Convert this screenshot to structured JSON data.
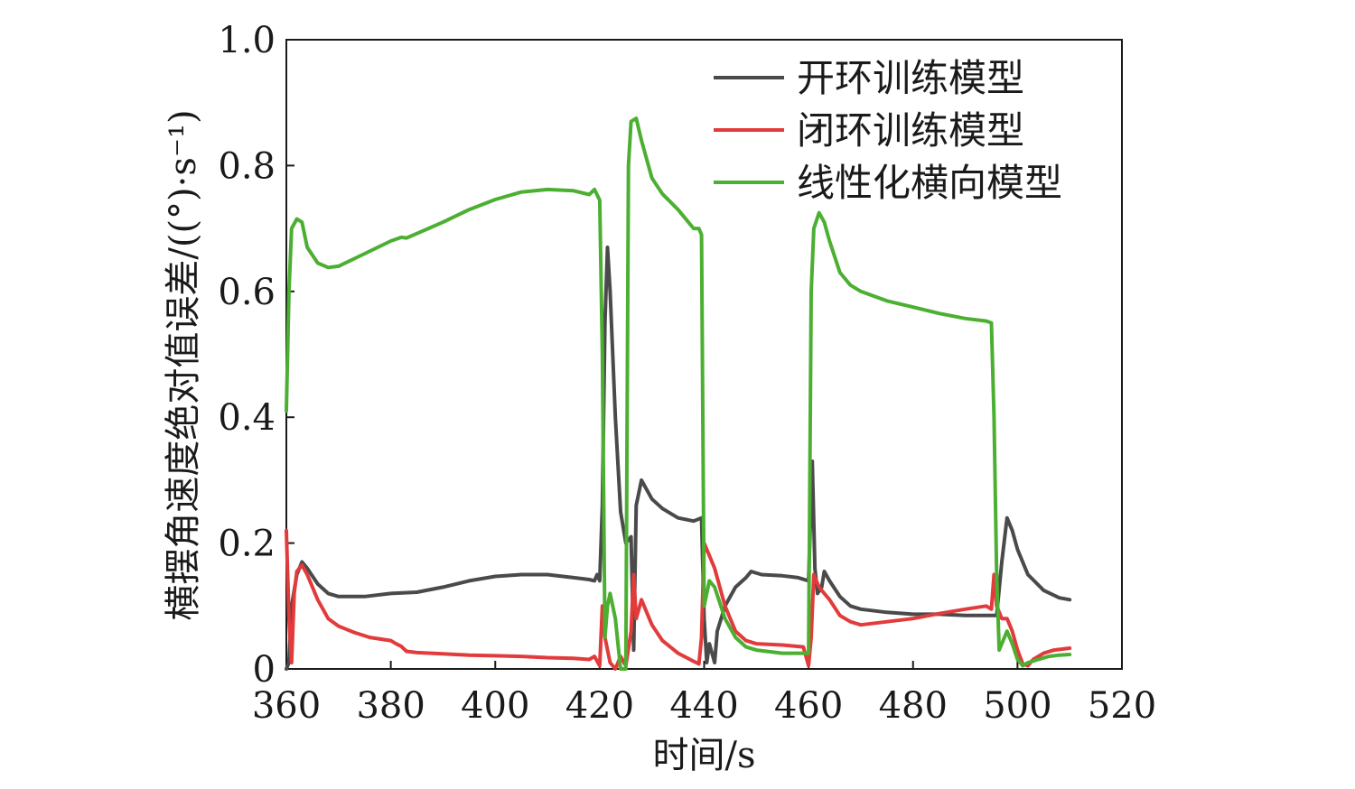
{
  "chart_data": {
    "type": "line",
    "xlabel": "时间/s",
    "ylabel": "横摆角速度绝对值误差/((°)·s⁻¹)",
    "xlim": [
      360,
      520
    ],
    "ylim": [
      0,
      1.0
    ],
    "x_ticks": [
      "360",
      "380",
      "400",
      "420",
      "440",
      "460",
      "480",
      "500",
      "520"
    ],
    "y_ticks": [
      "0",
      "0.2",
      "0.4",
      "0.6",
      "0.8",
      "1.0"
    ],
    "grid": false,
    "legend_position": "top-right",
    "series": [
      {
        "name": "开环训练模型",
        "color": "#4a4a4a",
        "points": [
          [
            360,
            0
          ],
          [
            360.5,
            0.01
          ],
          [
            361,
            0.1
          ],
          [
            362,
            0.15
          ],
          [
            363,
            0.17
          ],
          [
            364,
            0.16
          ],
          [
            366,
            0.135
          ],
          [
            368,
            0.12
          ],
          [
            370,
            0.115
          ],
          [
            375,
            0.115
          ],
          [
            380,
            0.12
          ],
          [
            385,
            0.122
          ],
          [
            390,
            0.13
          ],
          [
            395,
            0.14
          ],
          [
            400,
            0.147
          ],
          [
            405,
            0.15
          ],
          [
            410,
            0.15
          ],
          [
            415,
            0.145
          ],
          [
            418,
            0.142
          ],
          [
            419,
            0.14
          ],
          [
            419.5,
            0.15
          ],
          [
            420,
            0.14
          ],
          [
            420.5,
            0.26
          ],
          [
            421,
            0.55
          ],
          [
            421.5,
            0.67
          ],
          [
            422,
            0.6
          ],
          [
            423,
            0.4
          ],
          [
            424,
            0.25
          ],
          [
            425,
            0.2
          ],
          [
            426,
            0.21
          ],
          [
            426.5,
            0.03
          ],
          [
            427,
            0.26
          ],
          [
            428,
            0.3
          ],
          [
            430,
            0.27
          ],
          [
            432,
            0.255
          ],
          [
            435,
            0.24
          ],
          [
            438,
            0.235
          ],
          [
            439.5,
            0.24
          ],
          [
            440,
            0.08
          ],
          [
            440.5,
            0.01
          ],
          [
            441,
            0.04
          ],
          [
            442,
            0.01
          ],
          [
            442.5,
            0.06
          ],
          [
            444,
            0.1
          ],
          [
            446,
            0.13
          ],
          [
            448,
            0.145
          ],
          [
            449,
            0.155
          ],
          [
            451,
            0.15
          ],
          [
            455,
            0.148
          ],
          [
            458,
            0.145
          ],
          [
            460,
            0.14
          ],
          [
            460.7,
            0.33
          ],
          [
            461.2,
            0.16
          ],
          [
            461.7,
            0.12
          ],
          [
            462.5,
            0.13
          ],
          [
            463,
            0.155
          ],
          [
            464,
            0.14
          ],
          [
            466,
            0.115
          ],
          [
            468,
            0.1
          ],
          [
            470,
            0.095
          ],
          [
            475,
            0.09
          ],
          [
            480,
            0.087
          ],
          [
            485,
            0.087
          ],
          [
            490,
            0.085
          ],
          [
            494,
            0.085
          ],
          [
            495,
            0.085
          ],
          [
            496,
            0.085
          ],
          [
            497,
            0.17
          ],
          [
            498,
            0.24
          ],
          [
            499,
            0.22
          ],
          [
            500,
            0.19
          ],
          [
            502,
            0.15
          ],
          [
            505,
            0.125
          ],
          [
            508,
            0.113
          ],
          [
            510,
            0.11
          ]
        ]
      },
      {
        "name": "闭环训练模型",
        "color": "#e23b3b",
        "points": [
          [
            360,
            0.22
          ],
          [
            360.5,
            0.08
          ],
          [
            361,
            0.01
          ],
          [
            361.5,
            0.12
          ],
          [
            362,
            0.155
          ],
          [
            363,
            0.165
          ],
          [
            364,
            0.15
          ],
          [
            366,
            0.11
          ],
          [
            368,
            0.08
          ],
          [
            370,
            0.068
          ],
          [
            373,
            0.058
          ],
          [
            376,
            0.05
          ],
          [
            380,
            0.045
          ],
          [
            381,
            0.04
          ],
          [
            382,
            0.036
          ],
          [
            383,
            0.028
          ],
          [
            385,
            0.026
          ],
          [
            390,
            0.024
          ],
          [
            395,
            0.022
          ],
          [
            400,
            0.021
          ],
          [
            405,
            0.02
          ],
          [
            410,
            0.018
          ],
          [
            415,
            0.017
          ],
          [
            418,
            0.015
          ],
          [
            419,
            0.02
          ],
          [
            420,
            0.005
          ],
          [
            420.5,
            0.1
          ],
          [
            421,
            0.05
          ],
          [
            422,
            0.01
          ],
          [
            423,
            0.0
          ],
          [
            424,
            0.02
          ],
          [
            425,
            0.005
          ],
          [
            426,
            0.06
          ],
          [
            426.5,
            0.15
          ],
          [
            427,
            0.08
          ],
          [
            428,
            0.11
          ],
          [
            429,
            0.09
          ],
          [
            430,
            0.07
          ],
          [
            432,
            0.045
          ],
          [
            435,
            0.025
          ],
          [
            438,
            0.012
          ],
          [
            439,
            0.008
          ],
          [
            439.5,
            0.05
          ],
          [
            440,
            0.2
          ],
          [
            441,
            0.18
          ],
          [
            442,
            0.16
          ],
          [
            444,
            0.1
          ],
          [
            446,
            0.06
          ],
          [
            448,
            0.045
          ],
          [
            450,
            0.04
          ],
          [
            455,
            0.038
          ],
          [
            459,
            0.035
          ],
          [
            460,
            0.005
          ],
          [
            460.5,
            0.05
          ],
          [
            461,
            0.15
          ],
          [
            462,
            0.13
          ],
          [
            463,
            0.12
          ],
          [
            464,
            0.11
          ],
          [
            466,
            0.085
          ],
          [
            468,
            0.075
          ],
          [
            470,
            0.07
          ],
          [
            475,
            0.075
          ],
          [
            480,
            0.08
          ],
          [
            485,
            0.088
          ],
          [
            490,
            0.095
          ],
          [
            494,
            0.1
          ],
          [
            495,
            0.095
          ],
          [
            495.5,
            0.15
          ],
          [
            496,
            0.1
          ],
          [
            497,
            0.08
          ],
          [
            498,
            0.08
          ],
          [
            499,
            0.06
          ],
          [
            500,
            0.03
          ],
          [
            501,
            0.008
          ],
          [
            502,
            0.005
          ],
          [
            503,
            0.015
          ],
          [
            505,
            0.025
          ],
          [
            507,
            0.03
          ],
          [
            510,
            0.033
          ]
        ]
      },
      {
        "name": "线性化横向模型",
        "color": "#4caf32",
        "points": [
          [
            360,
            0.41
          ],
          [
            360.5,
            0.6
          ],
          [
            361,
            0.7
          ],
          [
            362,
            0.715
          ],
          [
            363,
            0.71
          ],
          [
            364,
            0.67
          ],
          [
            366,
            0.645
          ],
          [
            368,
            0.638
          ],
          [
            370,
            0.64
          ],
          [
            375,
            0.66
          ],
          [
            380,
            0.68
          ],
          [
            382,
            0.686
          ],
          [
            383,
            0.685
          ],
          [
            385,
            0.692
          ],
          [
            390,
            0.71
          ],
          [
            395,
            0.73
          ],
          [
            400,
            0.746
          ],
          [
            405,
            0.758
          ],
          [
            410,
            0.762
          ],
          [
            415,
            0.76
          ],
          [
            418,
            0.754
          ],
          [
            419,
            0.762
          ],
          [
            420,
            0.745
          ],
          [
            420.5,
            0.5
          ],
          [
            421,
            0.05
          ],
          [
            421.5,
            0.1
          ],
          [
            422,
            0.12
          ],
          [
            423,
            0.08
          ],
          [
            424,
            0.0
          ],
          [
            425,
            0.0
          ],
          [
            425.5,
            0.8
          ],
          [
            426,
            0.87
          ],
          [
            427,
            0.875
          ],
          [
            428,
            0.84
          ],
          [
            430,
            0.78
          ],
          [
            432,
            0.755
          ],
          [
            435,
            0.73
          ],
          [
            438,
            0.7
          ],
          [
            439,
            0.7
          ],
          [
            439.5,
            0.69
          ],
          [
            440,
            0.1
          ],
          [
            441,
            0.14
          ],
          [
            442,
            0.13
          ],
          [
            444,
            0.08
          ],
          [
            446,
            0.05
          ],
          [
            448,
            0.035
          ],
          [
            450,
            0.03
          ],
          [
            455,
            0.025
          ],
          [
            460,
            0.025
          ],
          [
            460.5,
            0.6
          ],
          [
            461,
            0.7
          ],
          [
            462,
            0.725
          ],
          [
            463,
            0.71
          ],
          [
            464,
            0.68
          ],
          [
            466,
            0.63
          ],
          [
            468,
            0.61
          ],
          [
            470,
            0.6
          ],
          [
            475,
            0.585
          ],
          [
            480,
            0.575
          ],
          [
            485,
            0.565
          ],
          [
            490,
            0.557
          ],
          [
            494,
            0.553
          ],
          [
            495,
            0.55
          ],
          [
            495.5,
            0.4
          ],
          [
            496,
            0.15
          ],
          [
            496.5,
            0.03
          ],
          [
            497,
            0.04
          ],
          [
            498,
            0.06
          ],
          [
            499,
            0.04
          ],
          [
            500,
            0.015
          ],
          [
            501,
            0.005
          ],
          [
            502,
            0.01
          ],
          [
            504,
            0.015
          ],
          [
            506,
            0.02
          ],
          [
            508,
            0.022
          ],
          [
            510,
            0.023
          ]
        ]
      }
    ]
  }
}
